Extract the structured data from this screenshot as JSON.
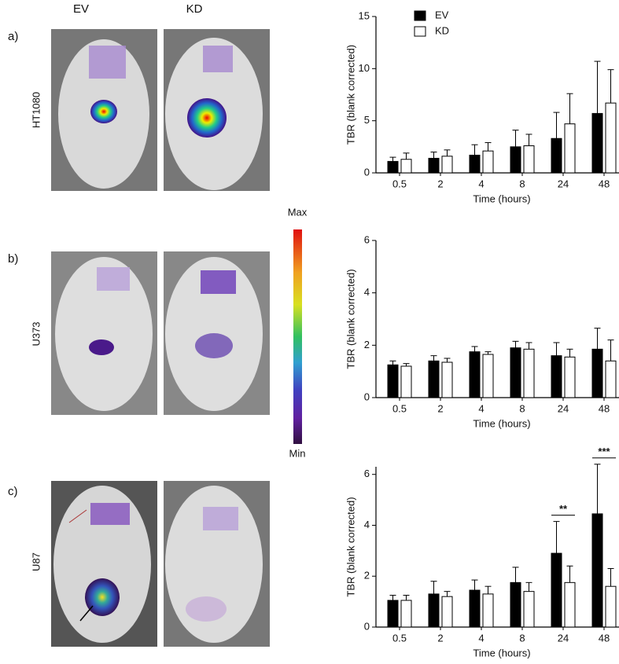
{
  "columns": [
    "EV",
    "KD"
  ],
  "rows": [
    {
      "panel": "a)",
      "cell_line": "HT1080"
    },
    {
      "panel": "b)",
      "cell_line": "U373"
    },
    {
      "panel": "c)",
      "cell_line": "U87"
    }
  ],
  "colorbar": {
    "max": "Max",
    "min": "Min"
  },
  "chart_data": [
    {
      "type": "bar",
      "ylabel": "TBR (blank corrected)",
      "xlabel": "Time (hours)",
      "categories": [
        "0.5",
        "2",
        "4",
        "8",
        "24",
        "48"
      ],
      "ylim": [
        0,
        15
      ],
      "yticks": [
        0,
        5,
        10,
        15
      ],
      "legend": "top-left",
      "series": [
        {
          "name": "EV",
          "color": "#000000",
          "values": [
            1.1,
            1.4,
            1.7,
            2.5,
            3.3,
            5.7
          ],
          "errors": [
            0.4,
            0.6,
            1.0,
            1.6,
            2.5,
            5.0
          ]
        },
        {
          "name": "KD",
          "color": "#ffffff",
          "values": [
            1.3,
            1.6,
            2.1,
            2.6,
            4.7,
            6.7
          ],
          "errors": [
            0.6,
            0.6,
            0.8,
            1.1,
            2.9,
            3.2
          ]
        }
      ]
    },
    {
      "type": "bar",
      "ylabel": "TBR (blank corrected)",
      "xlabel": "Time (hours)",
      "categories": [
        "0.5",
        "2",
        "4",
        "8",
        "24",
        "48"
      ],
      "ylim": [
        0,
        6
      ],
      "yticks": [
        0,
        2,
        4,
        6
      ],
      "series": [
        {
          "name": "EV",
          "color": "#000000",
          "values": [
            1.25,
            1.4,
            1.75,
            1.9,
            1.6,
            1.85
          ],
          "errors": [
            0.15,
            0.2,
            0.2,
            0.25,
            0.5,
            0.8
          ]
        },
        {
          "name": "KD",
          "color": "#ffffff",
          "values": [
            1.2,
            1.35,
            1.65,
            1.85,
            1.55,
            1.4
          ],
          "errors": [
            0.1,
            0.15,
            0.1,
            0.25,
            0.3,
            0.8
          ]
        }
      ]
    },
    {
      "type": "bar",
      "ylabel": "TBR (blank corrected)",
      "xlabel": "Time (hours)",
      "categories": [
        "0.5",
        "2",
        "4",
        "8",
        "24",
        "48"
      ],
      "ylim": [
        0,
        6.3
      ],
      "yticks": [
        0,
        2,
        4,
        6
      ],
      "annotations": [
        "**",
        "***"
      ],
      "series": [
        {
          "name": "EV",
          "color": "#000000",
          "values": [
            1.05,
            1.3,
            1.45,
            1.75,
            2.9,
            4.45
          ],
          "errors": [
            0.2,
            0.5,
            0.4,
            0.6,
            1.25,
            1.95
          ]
        },
        {
          "name": "KD",
          "color": "#ffffff",
          "values": [
            1.05,
            1.2,
            1.3,
            1.4,
            1.75,
            1.6
          ],
          "errors": [
            0.2,
            0.2,
            0.3,
            0.35,
            0.65,
            0.7
          ]
        }
      ]
    }
  ]
}
